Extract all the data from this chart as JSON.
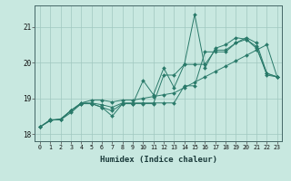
{
  "xlabel": "Humidex (Indice chaleur)",
  "xlim": [
    -0.5,
    23.5
  ],
  "ylim": [
    17.8,
    21.6
  ],
  "yticks": [
    18,
    19,
    20,
    21
  ],
  "xticks": [
    0,
    1,
    2,
    3,
    4,
    5,
    6,
    7,
    8,
    9,
    10,
    11,
    12,
    13,
    14,
    15,
    16,
    17,
    18,
    19,
    20,
    21,
    22,
    23
  ],
  "bg_color": "#c8e8e0",
  "line_color": "#2a7a6a",
  "grid_color": "#a0c8c0",
  "series": [
    [
      18.2,
      18.4,
      18.4,
      18.6,
      18.85,
      18.85,
      18.75,
      18.5,
      18.85,
      18.85,
      19.5,
      19.1,
      19.85,
      19.3,
      19.95,
      21.35,
      19.85,
      20.4,
      20.5,
      20.7,
      20.65,
      20.4,
      19.7,
      19.6
    ],
    [
      18.2,
      18.4,
      18.4,
      18.65,
      18.85,
      18.85,
      18.75,
      18.65,
      18.85,
      18.85,
      18.85,
      18.85,
      19.65,
      19.65,
      19.95,
      19.95,
      19.95,
      20.35,
      20.35,
      20.55,
      20.65,
      20.45,
      19.65,
      19.6
    ],
    [
      18.2,
      18.38,
      18.42,
      18.66,
      18.87,
      18.95,
      18.95,
      18.9,
      18.95,
      18.95,
      19.0,
      19.05,
      19.1,
      19.15,
      19.3,
      19.45,
      19.6,
      19.75,
      19.9,
      20.05,
      20.2,
      20.35,
      20.5,
      19.6
    ],
    [
      18.2,
      18.38,
      18.42,
      18.66,
      18.87,
      18.87,
      18.82,
      18.75,
      18.87,
      18.87,
      18.87,
      18.87,
      18.87,
      18.87,
      19.35,
      19.35,
      20.3,
      20.3,
      20.3,
      20.55,
      20.7,
      20.55,
      19.7,
      19.6
    ]
  ]
}
